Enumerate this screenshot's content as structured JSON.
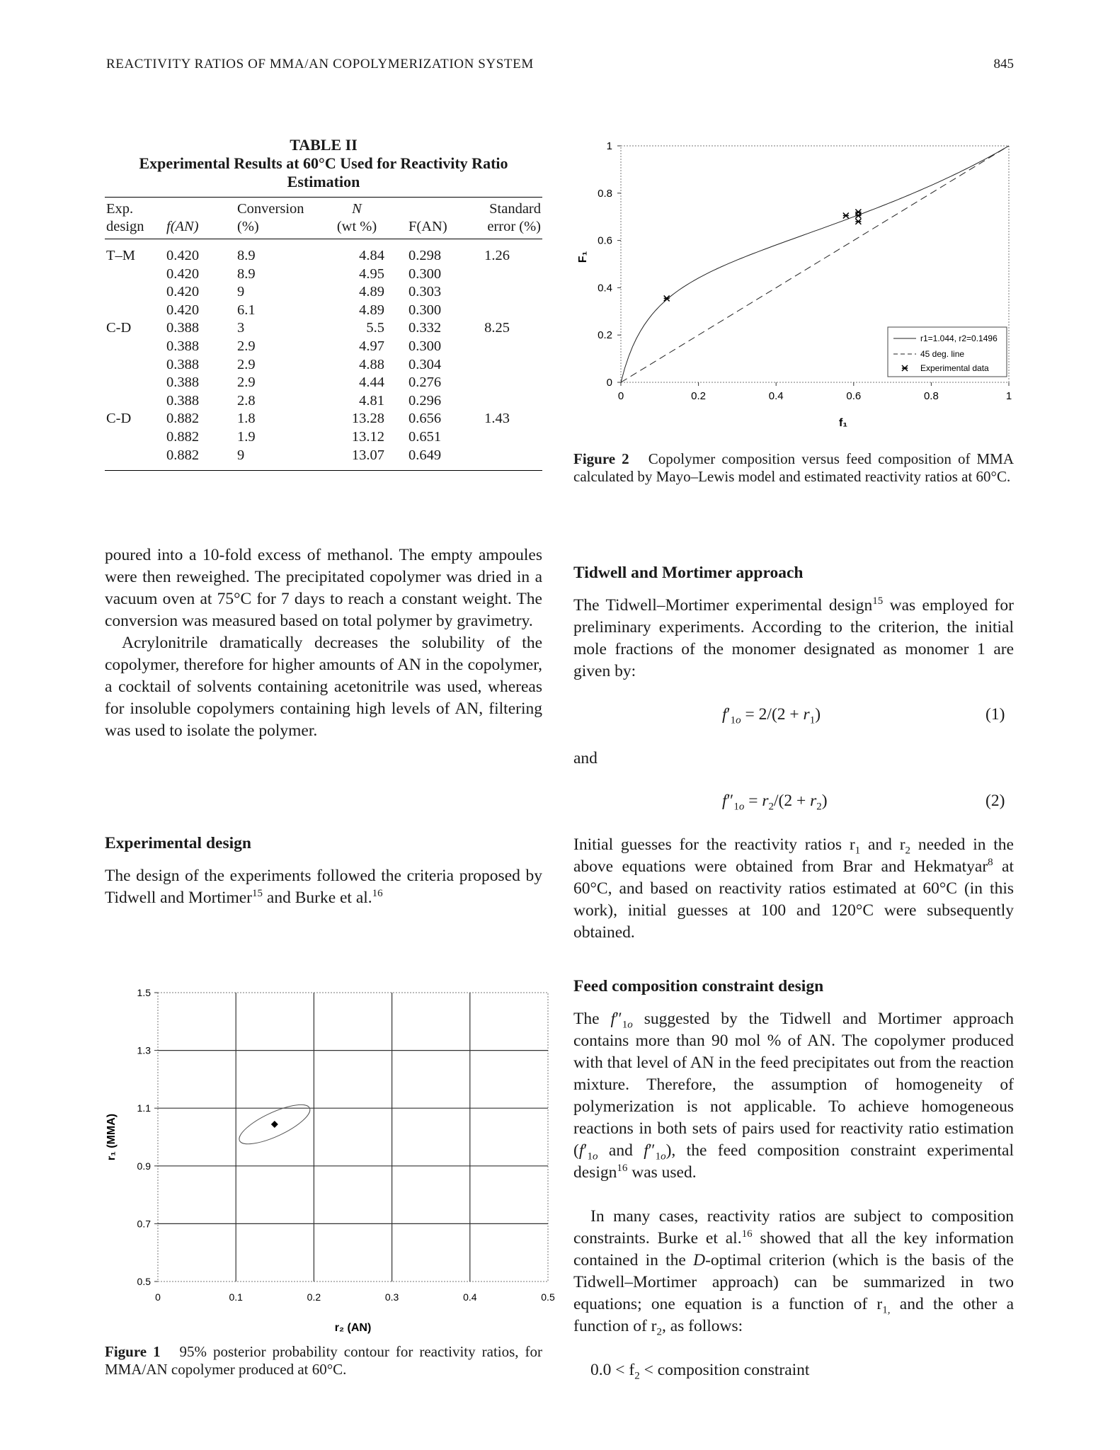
{
  "header": {
    "running_title": "REACTIVITY RATIOS OF MMA/AN COPOLYMERIZATION SYSTEM",
    "page_number": "845"
  },
  "table": {
    "title": "TABLE II",
    "caption": "Experimental Results at 60°C Used for Reactivity Ratio Estimation",
    "headers": [
      [
        "Exp.",
        "design"
      ],
      [
        "",
        "f(AN)"
      ],
      [
        "Conversion",
        "(%)"
      ],
      [
        "N",
        "(wt %)"
      ],
      [
        "",
        "F(AN)"
      ],
      [
        "Standard",
        "error (%)"
      ]
    ],
    "rows": [
      [
        "T–M",
        "0.420",
        "8.9",
        "4.84",
        "0.298",
        "1.26"
      ],
      [
        "",
        "0.420",
        "8.9",
        "4.95",
        "0.300",
        ""
      ],
      [
        "",
        "0.420",
        "9",
        "4.89",
        "0.303",
        ""
      ],
      [
        "",
        "0.420",
        "6.1",
        "4.89",
        "0.300",
        ""
      ],
      [
        "C-D",
        "0.388",
        "3",
        "5.5",
        "0.332",
        "8.25"
      ],
      [
        "",
        "0.388",
        "2.9",
        "4.97",
        "0.300",
        ""
      ],
      [
        "",
        "0.388",
        "2.9",
        "4.88",
        "0.304",
        ""
      ],
      [
        "",
        "0.388",
        "2.9",
        "4.44",
        "0.276",
        ""
      ],
      [
        "",
        "0.388",
        "2.8",
        "4.81",
        "0.296",
        ""
      ],
      [
        "C-D",
        "0.882",
        "1.8",
        "13.28",
        "0.656",
        "1.43"
      ],
      [
        "",
        "0.882",
        "1.9",
        "13.12",
        "0.651",
        ""
      ],
      [
        "",
        "0.882",
        "9",
        "13.07",
        "0.649",
        ""
      ]
    ]
  },
  "left_column": {
    "para1": "poured into a 10-fold excess of methanol. The empty ampoules were then reweighed. The precipitated copolymer was dried in a vacuum oven at 75°C for 7 days to reach a constant weight. The conversion was measured based on total polymer by gravimetry.",
    "para2": "Acrylonitrile dramatically decreases the solubility of the copolymer, therefore for higher amounts of AN in the copolymer, a cocktail of solvents containing acetonitrile was used, whereas for insoluble copolymers containing high levels of AN, filtering was used to isolate the polymer.",
    "heading": "Experimental design",
    "para3_a": "The design of the experiments followed the criteria proposed by Tidwell and Mortimer",
    "para3_ref1": "15",
    "para3_b": " and Burke et al.",
    "para3_ref2": "16"
  },
  "figure1": {
    "label": "Figure 1",
    "caption": "95% posterior probability contour for reactivity ratios, for MMA/AN copolymer produced at 60°C."
  },
  "figure2": {
    "label": "Figure 2",
    "caption": "Copolymer composition versus feed composition of MMA calculated by Mayo–Lewis model and estimated reactivity ratios at 60°C."
  },
  "right_column": {
    "heading1": "Tidwell and Mortimer approach",
    "para1_a": "The Tidwell–Mortimer experimental design",
    "para1_ref": "15",
    "para1_b": " was employed for preliminary experiments. According to the criterion, the initial mole fractions of the monomer designated as monomer 1 are given by:",
    "eq1_num": "(1)",
    "and_text": "and",
    "eq2_num": "(2)",
    "para2_a": "Initial guesses for the reactivity ratios r",
    "para2_b": " and r",
    "para2_c": " needed in the above equations were obtained from Brar and Hekmatyar",
    "para2_ref": "8",
    "para2_d": " at 60°C, and based on reactivity ratios estimated at 60°C (in this work), initial guesses at 100 and 120°C were subsequently obtained.",
    "heading2": "Feed composition constraint design",
    "para3_a": " suggested by the Tidwell and Mortimer approach contains more than 90 mol % of AN. The copolymer produced with that level of AN in the feed precipitates out from the reaction mixture. Therefore, the assumption of homogeneity of polymerization is not applicable. To achieve homogeneous reactions in both sets of pairs used for reactivity ratio estimation (",
    "para3_b": " and ",
    "para3_c": "), the feed composition constraint experimental design",
    "para3_ref": "16",
    "para3_d": " was used.",
    "para4_a": "In many cases, reactivity ratios are subject to composition constraints. Burke et al.",
    "para4_ref": "16",
    "para4_b": " showed that all the key information contained in the ",
    "para4_italic": "D",
    "para4_c": "-optimal criterion (which is the basis of the Tidwell–Mortimer approach) can be summarized in two equations; one equation is a function of r",
    "para4_d": " and the other a function of r",
    "para4_e": ", as follows:",
    "last_line": "0.0 < f",
    "last_line_b": " < composition constraint"
  },
  "chart_data": [
    {
      "type": "scatter",
      "title": "",
      "xlabel": "r₂ (AN)",
      "ylabel": "r₁ (MMA)",
      "xlim": [
        0,
        0.5
      ],
      "ylim": [
        0.5,
        1.5
      ],
      "xticks": [
        "0",
        "0.1",
        "0.2",
        "0.3",
        "0.4",
        "0.5"
      ],
      "yticks": [
        "0.5",
        "0.7",
        "0.9",
        "1.1",
        "1.3",
        "1.5"
      ],
      "grid": true,
      "point": {
        "x": 0.1496,
        "y": 1.044
      },
      "contour": {
        "cx": 0.1496,
        "cy": 1.044,
        "half_width": 0.045,
        "half_height": 0.075,
        "angle_deg": -25
      }
    },
    {
      "type": "line",
      "title": "",
      "xlabel": "f₁",
      "ylabel": "F₁",
      "xlim": [
        0,
        1
      ],
      "ylim": [
        0,
        1
      ],
      "xticks": [
        "0",
        "0.2",
        "0.4",
        "0.6",
        "0.8",
        "1"
      ],
      "yticks": [
        "0",
        "0.2",
        "0.4",
        "0.6",
        "0.8",
        "1"
      ],
      "legend_position": "bottom-right",
      "series": [
        {
          "name": "r1=1.044, r2=0.1496",
          "style": "solid",
          "model": "mayo-lewis",
          "r1": 1.044,
          "r2": 0.1496
        },
        {
          "name": "45 deg. line",
          "style": "dashed",
          "x": [
            0,
            1
          ],
          "y": [
            0,
            1
          ]
        },
        {
          "name": "Experimental data",
          "style": "markers",
          "x": [
            0.118,
            0.58,
            0.612,
            0.612,
            0.612
          ],
          "y": [
            0.355,
            0.705,
            0.72,
            0.705,
            0.68
          ]
        }
      ]
    }
  ]
}
